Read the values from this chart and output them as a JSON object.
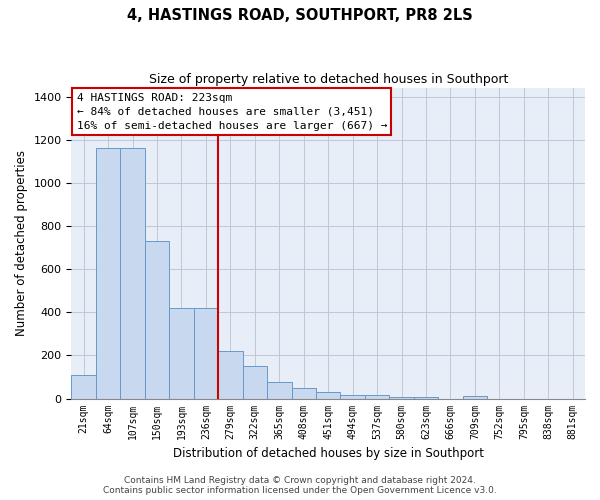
{
  "title": "4, HASTINGS ROAD, SOUTHPORT, PR8 2LS",
  "subtitle": "Size of property relative to detached houses in Southport",
  "xlabel": "Distribution of detached houses by size in Southport",
  "ylabel": "Number of detached properties",
  "bar_labels": [
    "21sqm",
    "64sqm",
    "107sqm",
    "150sqm",
    "193sqm",
    "236sqm",
    "279sqm",
    "322sqm",
    "365sqm",
    "408sqm",
    "451sqm",
    "494sqm",
    "537sqm",
    "580sqm",
    "623sqm",
    "666sqm",
    "709sqm",
    "752sqm",
    "795sqm",
    "838sqm",
    "881sqm"
  ],
  "bar_values": [
    107,
    1160,
    1160,
    730,
    420,
    420,
    220,
    150,
    75,
    50,
    30,
    18,
    18,
    5,
    5,
    0,
    10,
    0,
    0,
    0,
    0
  ],
  "bar_color": "#c8d8ee",
  "bar_edge_color": "#6699cc",
  "vline_x": 5.5,
  "vline_color": "#cc0000",
  "annotation_title": "4 HASTINGS ROAD: 223sqm",
  "annotation_line1": "← 84% of detached houses are smaller (3,451)",
  "annotation_line2": "16% of semi-detached houses are larger (667) →",
  "annotation_box_color": "#ffffff",
  "annotation_box_edge_color": "#cc0000",
  "ylim": [
    0,
    1440
  ],
  "yticks": [
    0,
    200,
    400,
    600,
    800,
    1000,
    1200,
    1400
  ],
  "ax_bg_color": "#e8eef8",
  "footer_line1": "Contains HM Land Registry data © Crown copyright and database right 2024.",
  "footer_line2": "Contains public sector information licensed under the Open Government Licence v3.0.",
  "background_color": "#ffffff",
  "grid_color": "#c0c8d8"
}
